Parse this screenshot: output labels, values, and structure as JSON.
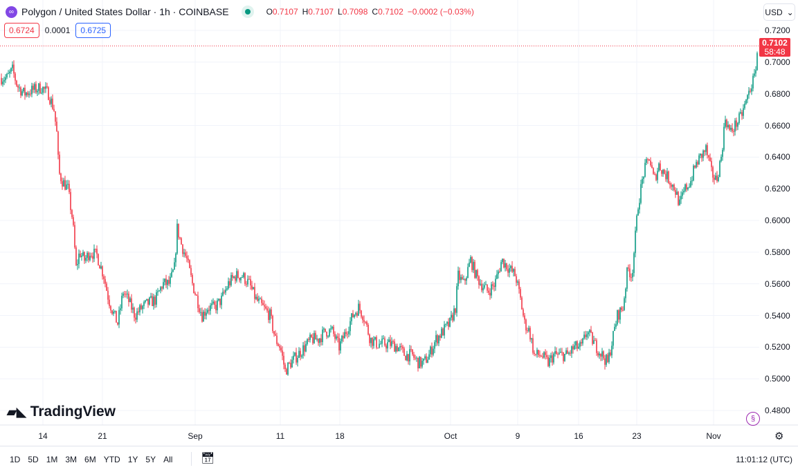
{
  "header": {
    "title": "Polygon / United States Dollar · 1h · COINBASE",
    "o_label": "O",
    "o": "0.7107",
    "h_label": "H",
    "h": "0.7107",
    "l_label": "L",
    "l": "0.7098",
    "c_label": "C",
    "c": "0.7102",
    "change": "−0.0002 (−0.03%)"
  },
  "bidask": {
    "bid": "0.6724",
    "spread": "0.0001",
    "ask": "0.6725"
  },
  "currency": "USD",
  "price_tag": {
    "price": "0.7102",
    "countdown": "58:48"
  },
  "brand": "TradingView",
  "ranges": [
    "1D",
    "5D",
    "1M",
    "3M",
    "6M",
    "YTD",
    "1Y",
    "5Y",
    "All"
  ],
  "clock": "11:01:12 (UTC)",
  "colors": {
    "up": "#089981",
    "down": "#f23645"
  },
  "chart_data": {
    "type": "candlestick",
    "y_ticks": [
      "0.7200",
      "0.7000",
      "0.6800",
      "0.6600",
      "0.6400",
      "0.6200",
      "0.6000",
      "0.5800",
      "0.5600",
      "0.5400",
      "0.5200",
      "0.5000",
      "0.4800"
    ],
    "ylim": [
      0.48,
      0.72
    ],
    "x_ticks": [
      "14",
      "21",
      "Sep",
      "11",
      "18",
      "Oct",
      "9",
      "16",
      "23",
      "Nov"
    ],
    "x_tick_hours": [
      124,
      296,
      564,
      810,
      982,
      1302,
      1496,
      1672,
      1840,
      2062
    ],
    "hours_total": 2190,
    "path_hours_price": [
      [
        0,
        0.69
      ],
      [
        20,
        0.69
      ],
      [
        36,
        0.695
      ],
      [
        50,
        0.685
      ],
      [
        70,
        0.68
      ],
      [
        90,
        0.682
      ],
      [
        120,
        0.684
      ],
      [
        140,
        0.68
      ],
      [
        156,
        0.67
      ],
      [
        164,
        0.655
      ],
      [
        170,
        0.63
      ],
      [
        180,
        0.625
      ],
      [
        196,
        0.62
      ],
      [
        210,
        0.6
      ],
      [
        220,
        0.57
      ],
      [
        230,
        0.58
      ],
      [
        244,
        0.575
      ],
      [
        260,
        0.58
      ],
      [
        280,
        0.578
      ],
      [
        300,
        0.565
      ],
      [
        314,
        0.55
      ],
      [
        330,
        0.54
      ],
      [
        340,
        0.535
      ],
      [
        356,
        0.555
      ],
      [
        370,
        0.55
      ],
      [
        390,
        0.54
      ],
      [
        410,
        0.545
      ],
      [
        430,
        0.548
      ],
      [
        450,
        0.55
      ],
      [
        470,
        0.56
      ],
      [
        490,
        0.56
      ],
      [
        504,
        0.57
      ],
      [
        512,
        0.595
      ],
      [
        524,
        0.585
      ],
      [
        540,
        0.575
      ],
      [
        556,
        0.56
      ],
      [
        570,
        0.55
      ],
      [
        584,
        0.54
      ],
      [
        600,
        0.545
      ],
      [
        620,
        0.545
      ],
      [
        640,
        0.55
      ],
      [
        660,
        0.56
      ],
      [
        680,
        0.565
      ],
      [
        700,
        0.565
      ],
      [
        720,
        0.56
      ],
      [
        740,
        0.55
      ],
      [
        760,
        0.545
      ],
      [
        780,
        0.54
      ],
      [
        796,
        0.525
      ],
      [
        810,
        0.52
      ],
      [
        824,
        0.505
      ],
      [
        840,
        0.51
      ],
      [
        860,
        0.515
      ],
      [
        880,
        0.52
      ],
      [
        900,
        0.525
      ],
      [
        920,
        0.525
      ],
      [
        940,
        0.53
      ],
      [
        960,
        0.53
      ],
      [
        980,
        0.52
      ],
      [
        1000,
        0.53
      ],
      [
        1020,
        0.54
      ],
      [
        1036,
        0.545
      ],
      [
        1050,
        0.54
      ],
      [
        1070,
        0.525
      ],
      [
        1090,
        0.522
      ],
      [
        1110,
        0.522
      ],
      [
        1130,
        0.522
      ],
      [
        1150,
        0.52
      ],
      [
        1170,
        0.515
      ],
      [
        1190,
        0.515
      ],
      [
        1210,
        0.51
      ],
      [
        1224,
        0.51
      ],
      [
        1240,
        0.515
      ],
      [
        1260,
        0.525
      ],
      [
        1280,
        0.53
      ],
      [
        1300,
        0.535
      ],
      [
        1316,
        0.545
      ],
      [
        1324,
        0.565
      ],
      [
        1340,
        0.56
      ],
      [
        1360,
        0.575
      ],
      [
        1376,
        0.565
      ],
      [
        1390,
        0.56
      ],
      [
        1410,
        0.555
      ],
      [
        1430,
        0.56
      ],
      [
        1450,
        0.575
      ],
      [
        1470,
        0.57
      ],
      [
        1490,
        0.565
      ],
      [
        1504,
        0.55
      ],
      [
        1516,
        0.535
      ],
      [
        1530,
        0.53
      ],
      [
        1544,
        0.515
      ],
      [
        1564,
        0.515
      ],
      [
        1584,
        0.51
      ],
      [
        1600,
        0.515
      ],
      [
        1620,
        0.515
      ],
      [
        1640,
        0.515
      ],
      [
        1660,
        0.52
      ],
      [
        1680,
        0.52
      ],
      [
        1696,
        0.53
      ],
      [
        1710,
        0.525
      ],
      [
        1724,
        0.52
      ],
      [
        1740,
        0.515
      ],
      [
        1756,
        0.51
      ],
      [
        1770,
        0.525
      ],
      [
        1784,
        0.54
      ],
      [
        1800,
        0.545
      ],
      [
        1814,
        0.57
      ],
      [
        1826,
        0.565
      ],
      [
        1836,
        0.59
      ],
      [
        1844,
        0.61
      ],
      [
        1860,
        0.63
      ],
      [
        1876,
        0.64
      ],
      [
        1890,
        0.625
      ],
      [
        1904,
        0.635
      ],
      [
        1920,
        0.63
      ],
      [
        1936,
        0.625
      ],
      [
        1950,
        0.62
      ],
      [
        1964,
        0.61
      ],
      [
        1980,
        0.62
      ],
      [
        1996,
        0.625
      ],
      [
        2010,
        0.635
      ],
      [
        2024,
        0.64
      ],
      [
        2040,
        0.645
      ],
      [
        2056,
        0.63
      ],
      [
        2070,
        0.625
      ],
      [
        2084,
        0.64
      ],
      [
        2096,
        0.665
      ],
      [
        2110,
        0.655
      ],
      [
        2124,
        0.66
      ],
      [
        2140,
        0.665
      ],
      [
        2156,
        0.675
      ],
      [
        2170,
        0.685
      ],
      [
        2180,
        0.69
      ],
      [
        2190,
        0.7102
      ]
    ]
  }
}
